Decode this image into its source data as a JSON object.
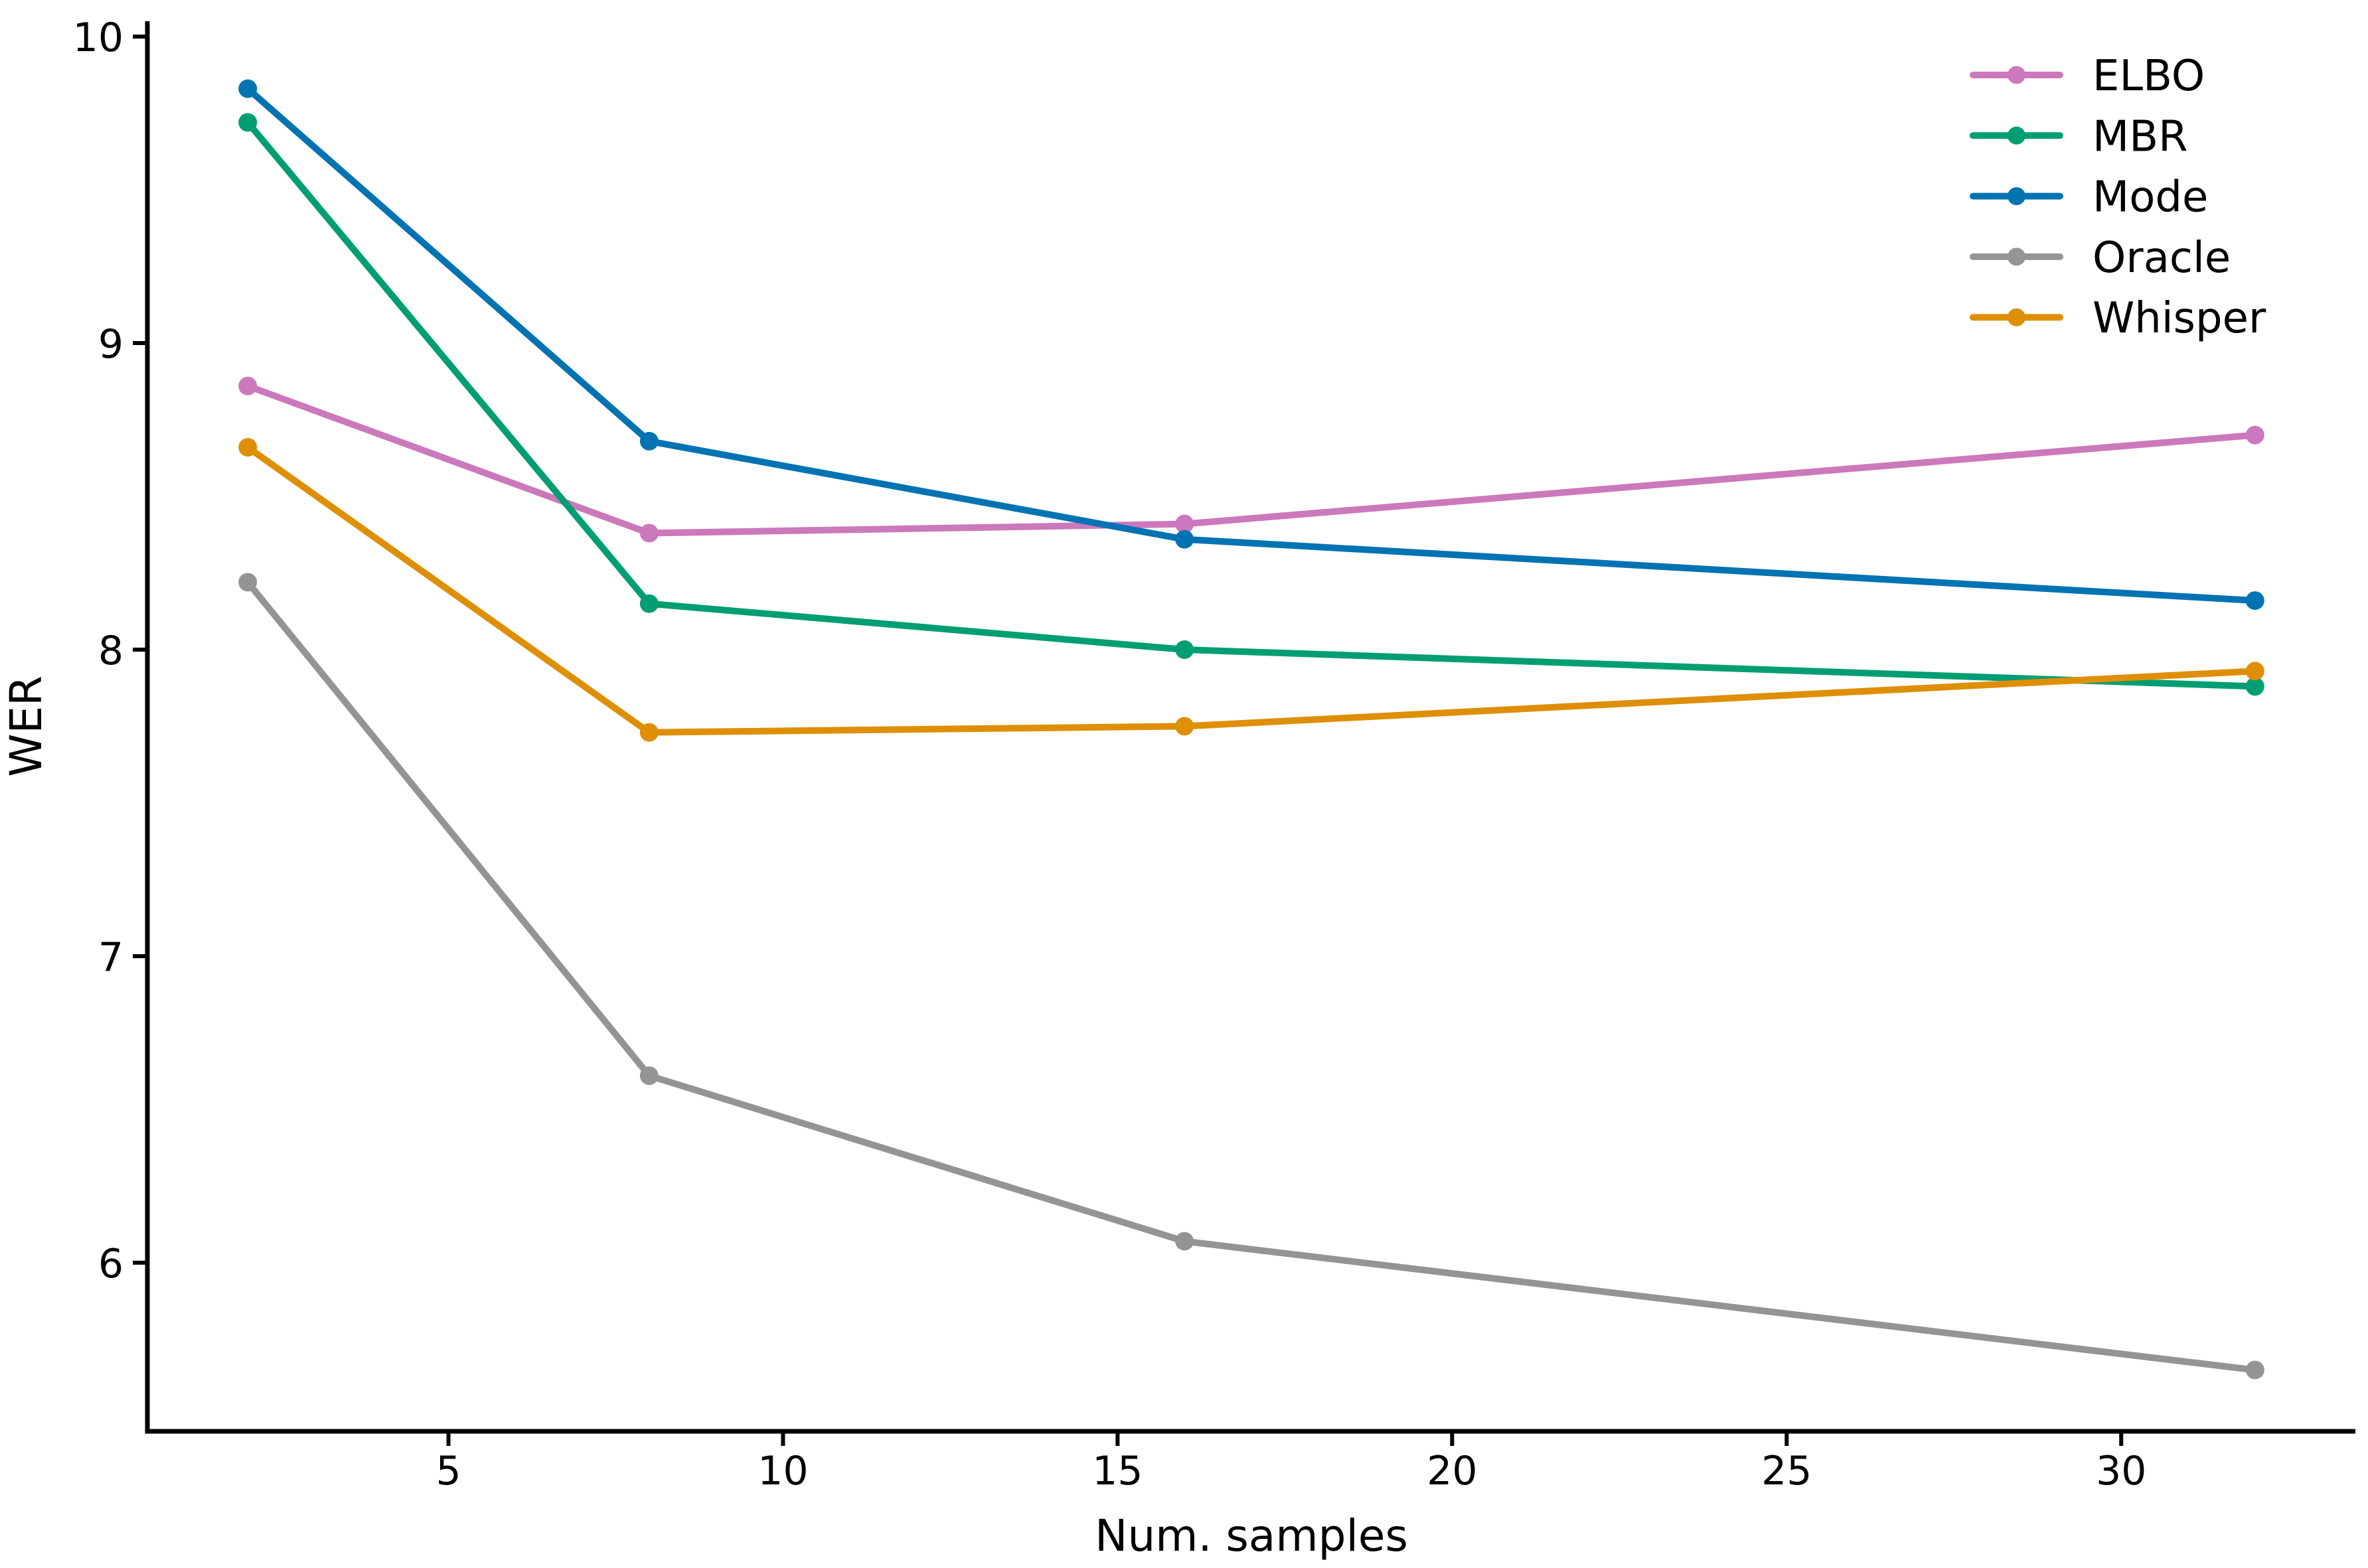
{
  "chart_data": {
    "type": "line",
    "title": "",
    "xlabel": "Num. samples",
    "ylabel": "WER",
    "x": [
      2,
      8,
      16,
      32
    ],
    "series": [
      {
        "name": "ELBO",
        "color": "#cc78bc",
        "values": [
          8.86,
          8.38,
          8.41,
          8.7
        ]
      },
      {
        "name": "MBR",
        "color": "#029e73",
        "values": [
          9.72,
          8.15,
          8.0,
          7.88
        ]
      },
      {
        "name": "Mode",
        "color": "#0173b2",
        "values": [
          9.83,
          8.68,
          8.36,
          8.16
        ]
      },
      {
        "name": "Oracle",
        "color": "#949494",
        "values": [
          8.22,
          6.61,
          6.07,
          5.65
        ]
      },
      {
        "name": "Whisper",
        "color": "#de8f05",
        "values": [
          8.66,
          7.73,
          7.75,
          7.93
        ]
      }
    ],
    "x_ticks": [
      5,
      10,
      15,
      20,
      25,
      30
    ],
    "y_ticks": [
      6,
      7,
      8,
      9,
      10
    ],
    "xlim": [
      0.5,
      33.5
    ],
    "ylim": [
      5.45,
      10.05
    ],
    "grid": false,
    "legend_position": "upper right",
    "legend_labels": [
      "ELBO",
      "MBR",
      "Mode",
      "Oracle",
      "Whisper"
    ],
    "marker": "circle",
    "axis_color": "#000000"
  }
}
